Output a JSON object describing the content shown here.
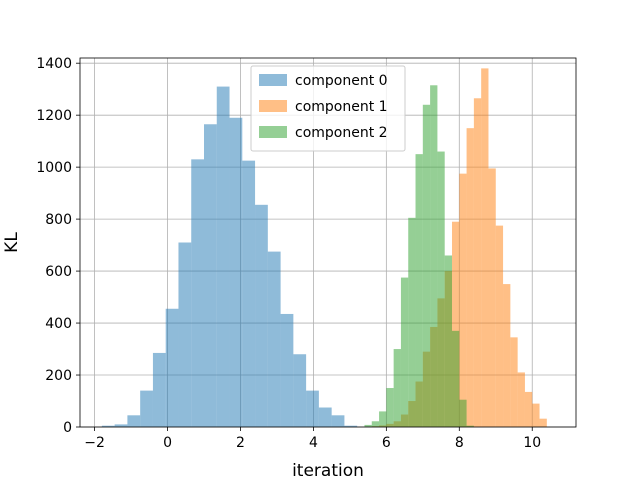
{
  "chart_data": {
    "type": "bar",
    "title": "",
    "xlabel": "iteration",
    "ylabel": "KL",
    "xlim": [
      -2.4,
      11.2
    ],
    "ylim": [
      0,
      1420
    ],
    "xticks": [
      -2,
      0,
      2,
      4,
      6,
      8,
      10
    ],
    "yticks": [
      0,
      200,
      400,
      600,
      800,
      1000,
      1200,
      1400
    ],
    "grid": true,
    "legend_position": "top-center",
    "series": [
      {
        "name": "component 0",
        "color": "#1f77b4",
        "alpha": 0.5,
        "bin_width": 0.35,
        "bin_starts": [
          -1.8,
          -1.45,
          -1.1,
          -0.75,
          -0.4,
          -0.05,
          0.3,
          0.65,
          1.0,
          1.35,
          1.7,
          2.05,
          2.4,
          2.75,
          3.1,
          3.45,
          3.8,
          4.15,
          4.5,
          4.85
        ],
        "counts": [
          5,
          10,
          45,
          140,
          285,
          455,
          710,
          1030,
          1165,
          1310,
          1190,
          1025,
          855,
          675,
          435,
          280,
          140,
          75,
          45,
          5
        ]
      },
      {
        "name": "component 1",
        "color": "#ff7f0e",
        "alpha": 0.5,
        "bin_width": 0.2,
        "bin_starts": [
          5.6,
          5.8,
          6.0,
          6.2,
          6.4,
          6.6,
          6.8,
          7.0,
          7.2,
          7.4,
          7.6,
          7.8,
          8.0,
          8.2,
          8.4,
          8.6,
          8.8,
          9.0,
          9.2,
          9.4,
          9.6,
          9.8,
          10.0,
          10.2
        ],
        "counts": [
          3,
          6,
          12,
          22,
          48,
          100,
          175,
          290,
          385,
          495,
          600,
          790,
          975,
          1150,
          1265,
          1380,
          995,
          775,
          550,
          345,
          210,
          135,
          90,
          32
        ]
      },
      {
        "name": "component 2",
        "color": "#2ca02c",
        "alpha": 0.5,
        "bin_width": 0.2,
        "bin_starts": [
          5.4,
          5.6,
          5.8,
          6.0,
          6.2,
          6.4,
          6.6,
          6.8,
          7.0,
          7.2,
          7.4,
          7.6,
          7.8,
          8.0,
          8.2
        ],
        "counts": [
          8,
          22,
          60,
          150,
          300,
          575,
          805,
          1050,
          1240,
          1315,
          1060,
          660,
          370,
          105,
          5
        ]
      }
    ]
  }
}
